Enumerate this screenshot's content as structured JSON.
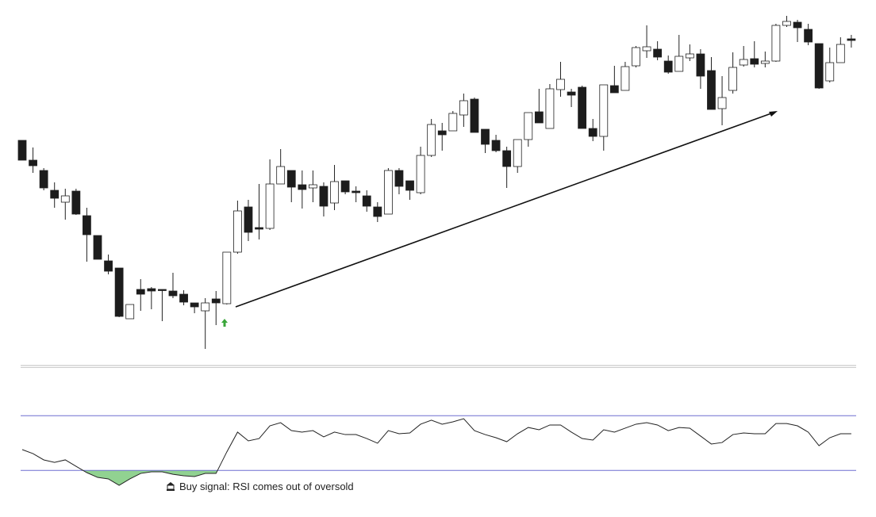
{
  "chart_data": [
    {
      "type": "candlestick",
      "ylim": [
        0,
        460
      ],
      "up_color": "#ffffff",
      "down_color": "#1c1c1c",
      "open": [
        283,
        258,
        245,
        220,
        205,
        219,
        188,
        163,
        131,
        122,
        58,
        95,
        96,
        95,
        93,
        89,
        78,
        68,
        83,
        77,
        142,
        199,
        173,
        172,
        228,
        245,
        227,
        223,
        225,
        204,
        232,
        219,
        213,
        199,
        190,
        245,
        232,
        217,
        264,
        295,
        295,
        315,
        335,
        297,
        283,
        270,
        250,
        284,
        319,
        298,
        347,
        344,
        350,
        298,
        288,
        352,
        346,
        377,
        396,
        398,
        383,
        370,
        387,
        392,
        371,
        323,
        346,
        378,
        386,
        380,
        383,
        428,
        432,
        423,
        405,
        358,
        381,
        411
      ],
      "high": [
        283,
        274,
        248,
        230,
        222,
        222,
        198,
        163,
        139,
        122,
        76,
        108,
        98,
        95,
        116,
        94,
        78,
        84,
        93,
        142,
        207,
        208,
        228,
        259,
        272,
        245,
        245,
        245,
        230,
        252,
        232,
        225,
        220,
        205,
        248,
        248,
        232,
        275,
        310,
        305,
        320,
        342,
        337,
        297,
        290,
        275,
        284,
        318,
        348,
        354,
        382,
        348,
        352,
        310,
        353,
        377,
        382,
        402,
        428,
        408,
        390,
        416,
        404,
        398,
        388,
        364,
        394,
        402,
        408,
        395,
        430,
        440,
        435,
        430,
        405,
        400,
        413,
        416
      ],
      "low": [
        258,
        242,
        220,
        198,
        183,
        189,
        130,
        133,
        114,
        60,
        58,
        68,
        70,
        55,
        84,
        75,
        65,
        20,
        50,
        76,
        140,
        156,
        158,
        170,
        228,
        205,
        197,
        205,
        187,
        195,
        215,
        205,
        193,
        180,
        190,
        215,
        208,
        215,
        262,
        270,
        295,
        300,
        293,
        267,
        268,
        223,
        242,
        275,
        305,
        298,
        338,
        325,
        298,
        282,
        270,
        343,
        346,
        375,
        387,
        384,
        367,
        370,
        383,
        348,
        322,
        302,
        342,
        376,
        375,
        375,
        382,
        426,
        407,
        403,
        348,
        356,
        381,
        400
      ],
      "close": [
        258,
        251,
        223,
        210,
        213,
        190,
        164,
        133,
        118,
        61,
        76,
        89,
        93,
        94,
        87,
        79,
        73,
        78,
        78,
        142,
        194,
        167,
        171,
        228,
        250,
        224,
        221,
        227,
        200,
        231,
        218,
        217,
        200,
        187,
        245,
        225,
        220,
        264,
        303,
        290,
        317,
        333,
        293,
        278,
        270,
        250,
        284,
        318,
        305,
        348,
        360,
        340,
        298,
        288,
        353,
        343,
        376,
        400,
        401,
        388,
        369,
        389,
        392,
        364,
        322,
        337,
        375,
        385,
        379,
        383,
        428,
        433,
        425,
        407,
        349,
        381,
        404,
        409
      ]
    },
    {
      "type": "line",
      "ylim": [
        0,
        100
      ],
      "levels": [
        30,
        70
      ],
      "color": "#222222",
      "level_color": "#6f6fd0",
      "fill_color": "#6cc36c",
      "annotation": "Buy signal: RSI comes out of oversold",
      "values": [
        45.2,
        42.3,
        37.7,
        35.9,
        37.7,
        33.0,
        28.4,
        24.9,
        23.8,
        19.1,
        23.8,
        27.8,
        29.0,
        29.0,
        27.2,
        26.1,
        25.5,
        27.8,
        27.8,
        43.5,
        58.0,
        51.6,
        53.3,
        62.6,
        64.9,
        59.1,
        58.0,
        59.1,
        54.5,
        58.0,
        56.2,
        56.2,
        53.3,
        49.9,
        59.1,
        56.8,
        57.4,
        63.8,
        66.7,
        63.8,
        65.5,
        67.8,
        59.1,
        56.2,
        53.9,
        51.0,
        56.8,
        61.4,
        59.7,
        63.2,
        63.2,
        58.0,
        53.3,
        52.2,
        59.7,
        58.0,
        60.9,
        63.8,
        64.9,
        63.2,
        59.1,
        61.4,
        60.9,
        55.1,
        49.3,
        50.4,
        56.2,
        57.4,
        56.8,
        56.8,
        64.3,
        64.3,
        62.6,
        58.0,
        48.1,
        53.9,
        56.8,
        56.8
      ]
    }
  ]
}
